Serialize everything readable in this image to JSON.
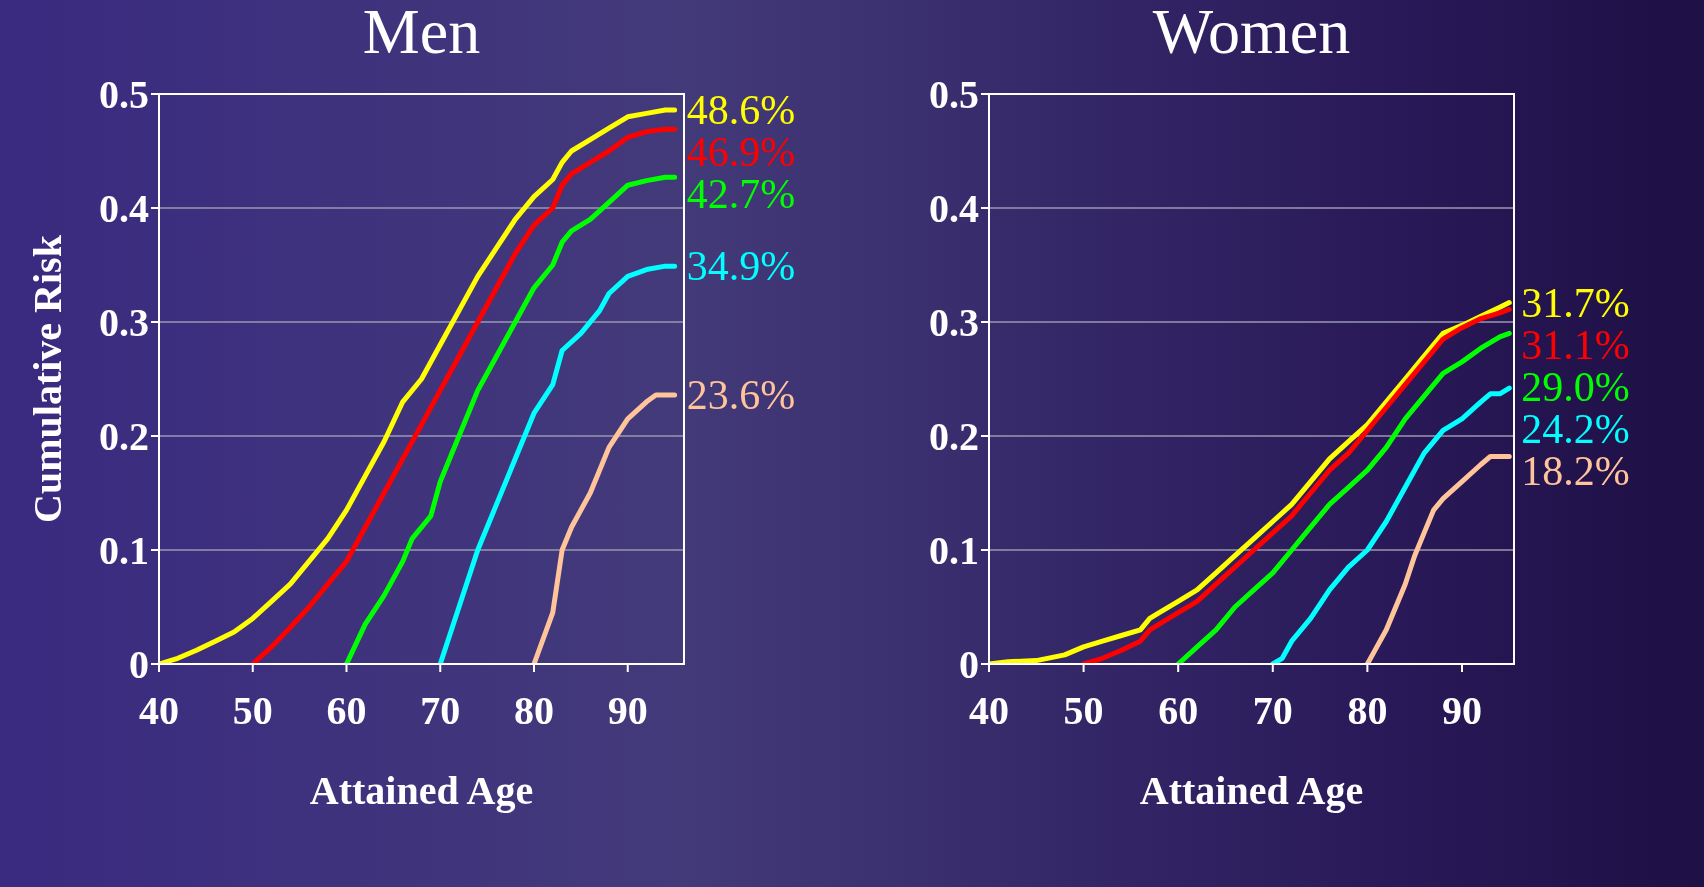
{
  "chart_data": [
    {
      "type": "line",
      "title": "Men",
      "xlabel": "Attained Age",
      "ylabel": "Cumulative Risk",
      "xlim": [
        40,
        96
      ],
      "xticks": [
        40,
        50,
        60,
        70,
        80,
        90
      ],
      "ylim": [
        0,
        0.5
      ],
      "yticks": [
        0,
        0.1,
        0.2,
        0.3,
        0.4,
        0.5
      ],
      "grid": "y",
      "marker": "none",
      "line_style": "solid",
      "series": [
        {
          "color": "#ffff00",
          "x": [
            40,
            42,
            44,
            46,
            48,
            50,
            52,
            54,
            56,
            58,
            60,
            62,
            64,
            66,
            68,
            70,
            72,
            74,
            76,
            78,
            80,
            82,
            83,
            84,
            86,
            88,
            90,
            92,
            94,
            95
          ],
          "values": [
            0,
            0.005,
            0.012,
            0.02,
            0.028,
            0.04,
            0.055,
            0.07,
            0.09,
            0.11,
            0.135,
            0.165,
            0.195,
            0.23,
            0.25,
            0.28,
            0.31,
            0.34,
            0.365,
            0.39,
            0.41,
            0.425,
            0.44,
            0.45,
            0.46,
            0.47,
            0.48,
            0.483,
            0.486,
            0.486
          ],
          "value_labels": [
            null,
            null,
            null,
            null,
            null,
            null,
            null,
            null,
            null,
            null,
            null,
            null,
            null,
            null,
            null,
            null,
            null,
            null,
            null,
            null,
            null,
            null,
            null,
            null,
            null,
            null,
            null,
            null,
            null,
            "48.6%"
          ]
        },
        {
          "color": "#ff0000",
          "x": [
            50,
            52,
            54,
            56,
            58,
            60,
            62,
            64,
            66,
            68,
            70,
            72,
            74,
            76,
            78,
            80,
            82,
            83,
            84,
            86,
            88,
            90,
            92,
            94,
            95
          ],
          "values": [
            0,
            0.015,
            0.032,
            0.05,
            0.07,
            0.09,
            0.12,
            0.15,
            0.18,
            0.21,
            0.24,
            0.27,
            0.3,
            0.33,
            0.36,
            0.385,
            0.4,
            0.42,
            0.43,
            0.44,
            0.45,
            0.462,
            0.467,
            0.469,
            0.469
          ],
          "value_labels": [
            null,
            null,
            null,
            null,
            null,
            null,
            null,
            null,
            null,
            null,
            null,
            null,
            null,
            null,
            null,
            null,
            null,
            null,
            null,
            null,
            null,
            null,
            null,
            null,
            "46.9%"
          ]
        },
        {
          "color": "#00ff00",
          "x": [
            60,
            62,
            64,
            66,
            67,
            69,
            70,
            72,
            74,
            76,
            78,
            80,
            82,
            83,
            84,
            86,
            88,
            90,
            92,
            94,
            95
          ],
          "values": [
            0,
            0.035,
            0.06,
            0.09,
            0.11,
            0.13,
            0.16,
            0.2,
            0.24,
            0.27,
            0.3,
            0.33,
            0.35,
            0.37,
            0.38,
            0.39,
            0.405,
            0.42,
            0.424,
            0.427,
            0.427
          ],
          "value_labels": [
            null,
            null,
            null,
            null,
            null,
            null,
            null,
            null,
            null,
            null,
            null,
            null,
            null,
            null,
            null,
            null,
            null,
            null,
            null,
            null,
            "42.7%"
          ]
        },
        {
          "color": "#00ffff",
          "x": [
            70,
            72,
            74,
            76,
            78,
            80,
            82,
            83,
            85,
            87,
            88,
            90,
            92,
            94,
            95
          ],
          "values": [
            0,
            0.05,
            0.1,
            0.14,
            0.18,
            0.22,
            0.245,
            0.275,
            0.29,
            0.31,
            0.325,
            0.34,
            0.346,
            0.349,
            0.349
          ],
          "value_labels": [
            null,
            null,
            null,
            null,
            null,
            null,
            null,
            null,
            null,
            null,
            null,
            null,
            null,
            null,
            "34.9%"
          ]
        },
        {
          "color": "#ffc49a",
          "x": [
            80,
            82,
            83,
            84,
            86,
            88,
            90,
            92,
            93,
            95
          ],
          "values": [
            0,
            0.045,
            0.1,
            0.12,
            0.15,
            0.19,
            0.215,
            0.23,
            0.236,
            0.236
          ],
          "value_labels": [
            null,
            null,
            null,
            null,
            null,
            null,
            null,
            null,
            null,
            "23.6%"
          ]
        }
      ]
    },
    {
      "type": "line",
      "title": "Women",
      "xlabel": "Attained Age",
      "xlim": [
        40,
        95.5
      ],
      "xticks": [
        40,
        50,
        60,
        70,
        80,
        90
      ],
      "ylim": [
        0,
        0.5
      ],
      "yticks": [
        0,
        0.1,
        0.2,
        0.3,
        0.4,
        0.5
      ],
      "grid": "y",
      "marker": "none",
      "line_style": "solid",
      "series": [
        {
          "color": "#ffff00",
          "x": [
            40,
            42,
            45,
            48,
            50,
            52,
            54,
            56,
            57,
            58,
            60,
            62,
            64,
            66,
            68,
            70,
            72,
            74,
            76,
            78,
            80,
            82,
            84,
            86,
            88,
            90,
            92,
            94,
            95
          ],
          "values": [
            0,
            0.002,
            0.003,
            0.008,
            0.015,
            0.02,
            0.025,
            0.03,
            0.04,
            0.045,
            0.055,
            0.065,
            0.08,
            0.095,
            0.11,
            0.125,
            0.14,
            0.16,
            0.18,
            0.195,
            0.21,
            0.23,
            0.25,
            0.27,
            0.29,
            0.297,
            0.305,
            0.313,
            0.317
          ],
          "value_labels": [
            null,
            null,
            null,
            null,
            null,
            null,
            null,
            null,
            null,
            null,
            null,
            null,
            null,
            null,
            null,
            null,
            null,
            null,
            null,
            null,
            null,
            null,
            null,
            null,
            null,
            null,
            null,
            null,
            "31.7%"
          ]
        },
        {
          "color": "#ff0000",
          "x": [
            50,
            52,
            54,
            56,
            57,
            58,
            60,
            62,
            64,
            66,
            68,
            70,
            72,
            74,
            76,
            78,
            80,
            82,
            84,
            86,
            88,
            90,
            92,
            94,
            95
          ],
          "values": [
            0,
            0.005,
            0.012,
            0.02,
            0.03,
            0.035,
            0.045,
            0.055,
            0.07,
            0.085,
            0.1,
            0.115,
            0.13,
            0.15,
            0.17,
            0.185,
            0.205,
            0.225,
            0.245,
            0.265,
            0.285,
            0.295,
            0.303,
            0.308,
            0.311
          ],
          "value_labels": [
            null,
            null,
            null,
            null,
            null,
            null,
            null,
            null,
            null,
            null,
            null,
            null,
            null,
            null,
            null,
            null,
            null,
            null,
            null,
            null,
            null,
            null,
            null,
            null,
            "31.1%"
          ]
        },
        {
          "color": "#00ff00",
          "x": [
            60,
            62,
            64,
            66,
            68,
            70,
            72,
            74,
            76,
            78,
            80,
            82,
            84,
            86,
            88,
            90,
            92,
            94,
            95
          ],
          "values": [
            0,
            0.015,
            0.03,
            0.05,
            0.065,
            0.08,
            0.1,
            0.12,
            0.14,
            0.155,
            0.17,
            0.19,
            0.215,
            0.235,
            0.255,
            0.265,
            0.277,
            0.287,
            0.29
          ],
          "value_labels": [
            null,
            null,
            null,
            null,
            null,
            null,
            null,
            null,
            null,
            null,
            null,
            null,
            null,
            null,
            null,
            null,
            null,
            null,
            "29.0%"
          ]
        },
        {
          "color": "#00ffff",
          "x": [
            70,
            71,
            72,
            74,
            76,
            78,
            80,
            82,
            84,
            86,
            88,
            90,
            92,
            93,
            94,
            95
          ],
          "values": [
            0,
            0.005,
            0.02,
            0.04,
            0.065,
            0.085,
            0.1,
            0.125,
            0.155,
            0.185,
            0.205,
            0.215,
            0.23,
            0.237,
            0.237,
            0.242
          ],
          "value_labels": [
            null,
            null,
            null,
            null,
            null,
            null,
            null,
            null,
            null,
            null,
            null,
            null,
            null,
            null,
            null,
            "24.2%"
          ]
        },
        {
          "color": "#ffc49a",
          "x": [
            80,
            81,
            82,
            84,
            85,
            86,
            87,
            88,
            90,
            92,
            93,
            95
          ],
          "values": [
            0,
            0.015,
            0.03,
            0.07,
            0.095,
            0.115,
            0.135,
            0.145,
            0.16,
            0.175,
            0.182,
            0.182
          ],
          "value_labels": [
            null,
            null,
            null,
            null,
            null,
            null,
            null,
            null,
            null,
            null,
            null,
            "18.2%"
          ]
        }
      ]
    }
  ]
}
